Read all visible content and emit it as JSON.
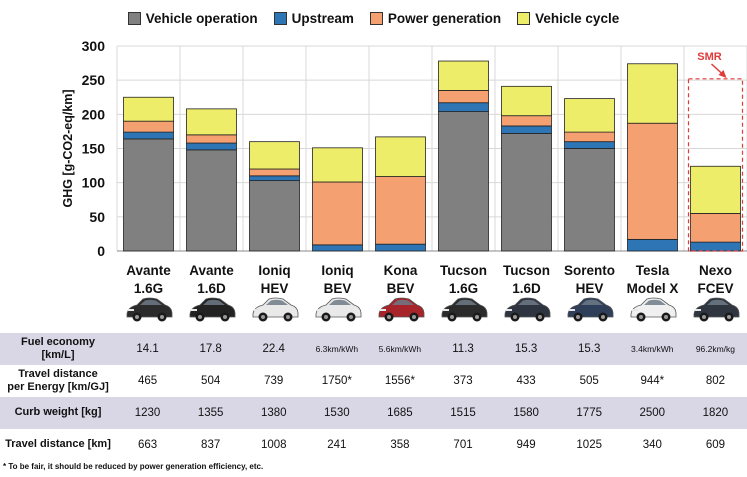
{
  "legend": [
    {
      "name": "Vehicle operation",
      "color": "#808080"
    },
    {
      "name": "Upstream",
      "color": "#2e75b6"
    },
    {
      "name": "Power generation",
      "color": "#f4a071"
    },
    {
      "name": "Vehicle cycle",
      "color": "#eded6a"
    }
  ],
  "chart_data": {
    "type": "bar",
    "stacked": true,
    "categories": [
      "Avante\n1.6G",
      "Avante\n1.6D",
      "Ioniq\nHEV",
      "Ioniq\nBEV",
      "Kona\nBEV",
      "Tucson\n1.6G",
      "Tucson\n1.6D",
      "Sorento\nHEV",
      "Tesla\nModel X",
      "Nexo\nFCEV"
    ],
    "series": [
      {
        "name": "Vehicle operation",
        "color": "#808080",
        "values": [
          164,
          148,
          103,
          0,
          0,
          204,
          172,
          150,
          0,
          0
        ]
      },
      {
        "name": "Upstream",
        "color": "#2e75b6",
        "values": [
          10,
          10,
          7,
          9,
          10,
          13,
          11,
          10,
          17,
          13
        ]
      },
      {
        "name": "Power generation",
        "color": "#f4a071",
        "values": [
          16,
          12,
          10,
          92,
          99,
          18,
          15,
          14,
          170,
          42
        ]
      },
      {
        "name": "Vehicle cycle",
        "color": "#eded6a",
        "values": [
          35,
          38,
          40,
          50,
          58,
          43,
          43,
          49,
          87,
          69
        ]
      }
    ],
    "xlabel": "",
    "ylabel": "GHG [g-CO2-eq/km]",
    "ylim": [
      0,
      300
    ],
    "yticks": [
      0,
      50,
      100,
      150,
      200,
      250,
      300
    ],
    "annotation": {
      "text": "SMR",
      "category_index": 9,
      "dashed_box_top": 252,
      "color": "#e03b3b"
    }
  },
  "table": {
    "rows": [
      {
        "label": "Fuel economy\n[km/L]",
        "shaded": true,
        "values": [
          "14.1",
          "17.8",
          "22.4",
          "6.3km/kWh",
          "5.6km/kWh",
          "11.3",
          "15.3",
          "15.3",
          "3.4km/kWh",
          "96.2km/kg"
        ]
      },
      {
        "label": "Travel distance\nper Energy [km/GJ]",
        "shaded": false,
        "values": [
          "465",
          "504",
          "739",
          "1750*",
          "1556*",
          "373",
          "433",
          "505",
          "944*",
          "802"
        ]
      },
      {
        "label": "Curb weight [kg]",
        "shaded": true,
        "values": [
          "1230",
          "1355",
          "1380",
          "1530",
          "1685",
          "1515",
          "1580",
          "1775",
          "2500",
          "1820"
        ]
      },
      {
        "label": "Travel distance [km]",
        "shaded": false,
        "values": [
          "663",
          "837",
          "1008",
          "241",
          "358",
          "701",
          "949",
          "1025",
          "340",
          "609"
        ]
      }
    ]
  },
  "car_colors": [
    "#2b2b2b",
    "#222222",
    "#e9e9e9",
    "#e9e9e9",
    "#a8242b",
    "#2b2b2b",
    "#2e3440",
    "#2f3f5a",
    "#f0f0f0",
    "#2f3640"
  ],
  "footnote": "* To be fair, it should be reduced by power generation efficiency, etc."
}
